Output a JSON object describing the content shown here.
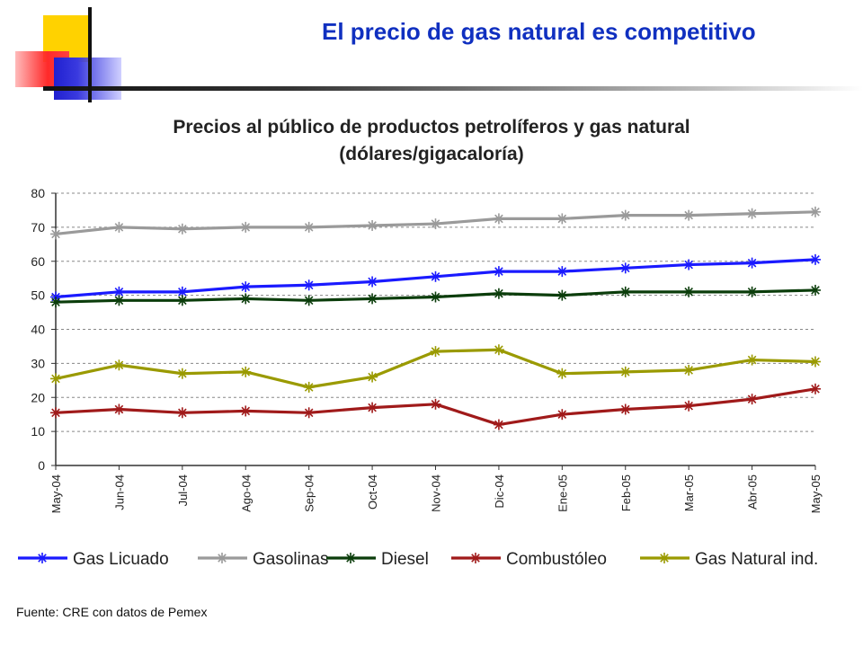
{
  "slide": {
    "title": "El precio de gas natural es competitivo",
    "source": "Fuente: CRE con datos de Pemex"
  },
  "chart_data": {
    "type": "line",
    "title": "Precios al público de productos petrolíferos y gas natural",
    "subtitle": "(dólares/gigacaloría)",
    "categories": [
      "May-04",
      "Jun-04",
      "Jul-04",
      "Ago-04",
      "Sep-04",
      "Oct-04",
      "Nov-04",
      "Dic-04",
      "Ene-05",
      "Feb-05",
      "Mar-05",
      "Abr-05",
      "May-05"
    ],
    "ylim": [
      0,
      80
    ],
    "yticks": [
      0,
      10,
      20,
      30,
      40,
      50,
      60,
      70,
      80
    ],
    "grid": true,
    "legend_position": "bottom",
    "series": [
      {
        "name": "Gas Licuado",
        "color": "#1a1aff",
        "values": [
          49.5,
          51,
          51,
          52.5,
          53,
          54,
          55.5,
          57,
          57,
          58,
          59,
          59.5,
          60.5
        ]
      },
      {
        "name": "Gasolinas",
        "color": "#9a9a9a",
        "values": [
          68,
          70,
          69.5,
          70,
          70,
          70.5,
          71,
          72.5,
          72.5,
          73.5,
          73.5,
          74,
          74.5
        ]
      },
      {
        "name": "Diesel",
        "color": "#0b3d0b",
        "values": [
          48,
          48.5,
          48.5,
          49,
          48.5,
          49,
          49.5,
          50.5,
          50,
          51,
          51,
          51,
          51.5
        ]
      },
      {
        "name": "Combustóleo",
        "color": "#a01a1a",
        "values": [
          15.5,
          16.5,
          15.5,
          16,
          15.5,
          17,
          18,
          12,
          15,
          16.5,
          17.5,
          19.5,
          22.5
        ]
      },
      {
        "name": "Gas Natural ind.",
        "color": "#9a9a00",
        "values": [
          25.5,
          29.5,
          27,
          27.5,
          23,
          26,
          33.5,
          34,
          27,
          27.5,
          28,
          31,
          30.5
        ]
      }
    ]
  }
}
